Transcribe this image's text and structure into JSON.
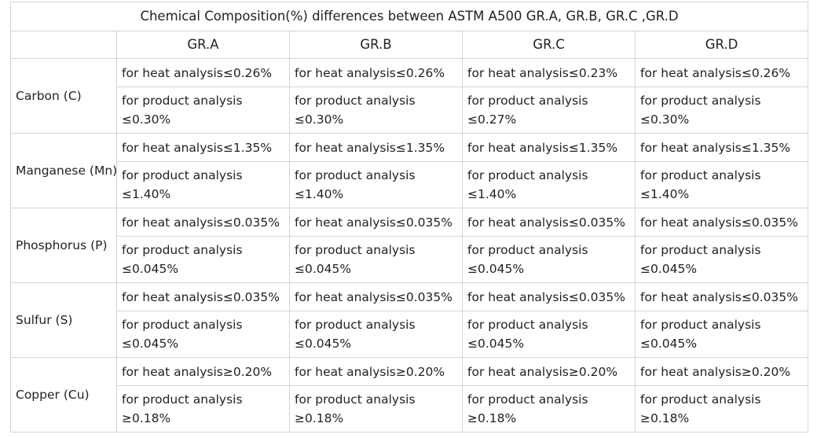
{
  "title": "Chemical Composition(%) differences between ASTM A500 GR.A, GR.B, GR.C ,GR.D",
  "grades": [
    "GR.A",
    "GR.B",
    "GR.C",
    "GR.D"
  ],
  "rows": [
    {
      "element": "Carbon (C)",
      "heat": [
        "for heat analysis≤0.26%",
        "for heat analysis≤0.26%",
        "for heat analysis≤0.23%",
        "for heat analysis≤0.26%"
      ],
      "product_label": "for product analysis",
      "product": [
        "≤0.30%",
        "≤0.30%",
        "≤0.27%",
        "≤0.30%"
      ]
    },
    {
      "element": "Manganese (Mn)",
      "heat": [
        "for heat analysis≤1.35%",
        "for heat analysis≤1.35%",
        "for heat analysis≤1.35%",
        "for heat analysis≤1.35%"
      ],
      "product_label": "for product analysis",
      "product": [
        "≤1.40%",
        "≤1.40%",
        "≤1.40%",
        "≤1.40%"
      ]
    },
    {
      "element": "Phosphorus (P)",
      "heat": [
        "for heat analysis≤0.035%",
        "for heat analysis≤0.035%",
        "for heat analysis≤0.035%",
        "for heat analysis≤0.035%"
      ],
      "product_label": "for product analysis",
      "product": [
        "≤0.045%",
        "≤0.045%",
        "≤0.045%",
        "≤0.045%"
      ]
    },
    {
      "element": "Sulfur (S)",
      "heat": [
        "for heat analysis≤0.035%",
        "for heat analysis≤0.035%",
        "for heat analysis≤0.035%",
        "for heat analysis≤0.035%"
      ],
      "product_label": "for product analysis",
      "product": [
        "≤0.045%",
        "≤0.045%",
        "≤0.045%",
        "≤0.045%"
      ]
    },
    {
      "element": "Copper (Cu)",
      "heat": [
        "for heat analysis≥0.20%",
        "for heat analysis≥0.20%",
        "for heat analysis≥0.20%",
        "for heat analysis≥0.20%"
      ],
      "product_label": "for product analysis",
      "product": [
        "≥0.18%",
        "≥0.18%",
        "≥0.18%",
        "≥0.18%"
      ]
    }
  ]
}
